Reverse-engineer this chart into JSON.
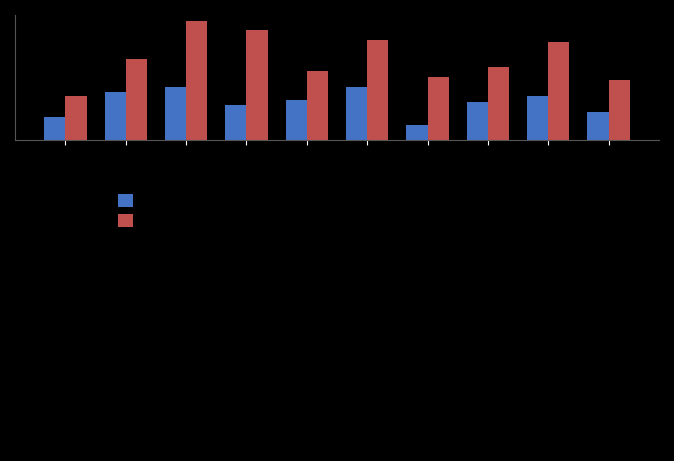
{
  "blue_values": [
    0.18,
    0.38,
    0.42,
    0.28,
    0.32,
    0.42,
    0.12,
    0.3,
    0.35,
    0.22
  ],
  "red_values": [
    0.35,
    0.65,
    0.95,
    0.88,
    0.55,
    0.8,
    0.5,
    0.58,
    0.78,
    0.48
  ],
  "blue_color": "#4472C4",
  "red_color": "#C0504D",
  "background_color": "#000000",
  "plot_bg_color": "#1F1F1F",
  "ylim": [
    0,
    1.0
  ],
  "legend_blue_label": "",
  "legend_red_label": "",
  "n_groups": 10
}
